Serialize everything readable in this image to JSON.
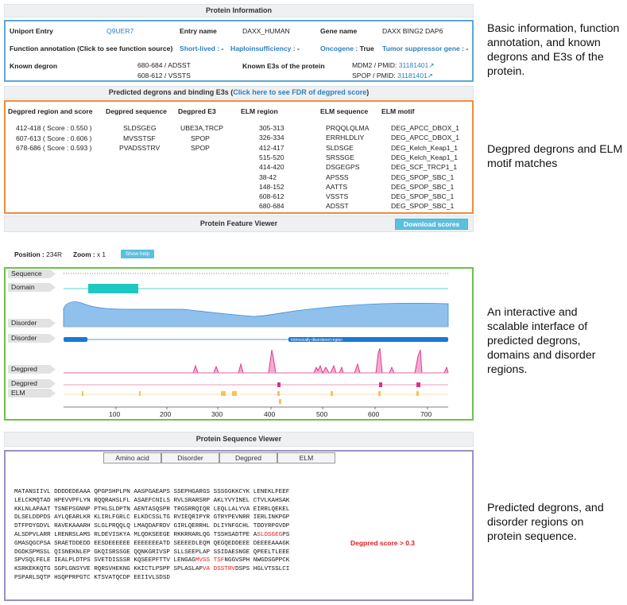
{
  "protein_info": {
    "header": "Protein Information",
    "uniprot_label": "Uniport Entry",
    "uniprot_value": "Q9UER7",
    "entry_label": "Entry name",
    "entry_value": "DAXX_HUMAN",
    "gene_label": "Gene name",
    "gene_value": "DAXX BING2 DAP6",
    "func_label": "Function annotation (Click to see function source)",
    "short_lived_label": "Short-lived :",
    "short_lived_value": "-",
    "haplo_label": "Haploinsufficiency :",
    "haplo_value": "-",
    "oncogene_label": "Oncogene :",
    "oncogene_value": "True",
    "tsg_label": "Tumor suppressor gene :",
    "tsg_value": "-",
    "known_degron_label": "Known degron",
    "known_degrons": [
      "680-684 / ADSST",
      "608-612 / VSSTS"
    ],
    "known_e3_label": "Known E3s of the protein",
    "known_e3s": [
      {
        "e3": "MDM2 / PMID:",
        "pmid": "31181401"
      },
      {
        "e3": "SPOP / PMID:",
        "pmid": "31181401"
      }
    ]
  },
  "predicted": {
    "header_prefix": "Predicted degrons and binding E3s (",
    "header_link": "Click here to see FDR of degpred score",
    "header_suffix": ")",
    "columns": [
      "Degpred region and score",
      "Degpred sequence",
      "Degpred E3",
      "ELM region",
      "ELM sequence",
      "ELM motif"
    ],
    "degpred_rows": [
      {
        "region": "412-418 ( Score : 0.550 )",
        "seq": "SLDSGEG",
        "e3": "UBE3A,TRCP"
      },
      {
        "region": "607-613 ( Score : 0.606 )",
        "seq": "MVSSTSF",
        "e3": "SPOP"
      },
      {
        "region": "678-686 ( Score : 0.593 )",
        "seq": "PVADSSTRV",
        "e3": "SPOP"
      }
    ],
    "elm_rows": [
      {
        "region": "305-313",
        "seq": "PRQQLQLMA",
        "motif": "DEG_APCC_DBOX_1"
      },
      {
        "region": "326-334",
        "seq": "ERRHLDLIY",
        "motif": "DEG_APCC_DBOX_1"
      },
      {
        "region": "412-417",
        "seq": "SLDSGE",
        "motif": "DEG_Kelch_Keap1_1"
      },
      {
        "region": "515-520",
        "seq": "SRSSGE",
        "motif": "DEG_Kelch_Keap1_1"
      },
      {
        "region": "414-420",
        "seq": "DSGEGPS",
        "motif": "DEG_SCF_TRCP1_1"
      },
      {
        "region": "38-42",
        "seq": "APSSS",
        "motif": "DEG_SPOP_SBC_1"
      },
      {
        "region": "148-152",
        "seq": "AATTS",
        "motif": "DEG_SPOP_SBC_1"
      },
      {
        "region": "608-612",
        "seq": "VSSTS",
        "motif": "DEG_SPOP_SBC_1"
      },
      {
        "region": "680-684",
        "seq": "ADSST",
        "motif": "DEG_SPOP_SBC_1"
      }
    ]
  },
  "feature_viewer": {
    "header": "Protein Feature Viewer",
    "download_label": "Download scores",
    "position_label": "Position :",
    "position_value": "234R",
    "zoom_label": "Zoom :",
    "zoom_value": "x 1",
    "help_label": "Show help",
    "tracks": [
      "Sequence",
      "Domain",
      "Disorder",
      "Disorder",
      "Degpred",
      "Degpred",
      "ELM"
    ],
    "disorder_region_label": "Intrinsically disordered region",
    "axis_ticks": [
      "100",
      "200",
      "300",
      "400",
      "500",
      "600",
      "700"
    ],
    "colors": {
      "domain": "#1ec8c0",
      "disorder": "#1a78d2",
      "degpred": "#d6338a",
      "elm": "#f7c25a"
    }
  },
  "sequence_viewer": {
    "header": "Protein Sequence Viewer",
    "tabs": [
      "Amino acid",
      "Disorder",
      "Degpred",
      "ELM"
    ],
    "score_note": "Degpred score > 0.3"
  },
  "annotations": [
    "Basic information, function annotation, and known degrons and E3s of the protein.",
    "Degpred degrons and ELM motif matches",
    "An interactive and scalable interface of predicted degrons, domains and disorder regions.",
    "Predicted degrons, and disorder regions on protein sequence."
  ]
}
